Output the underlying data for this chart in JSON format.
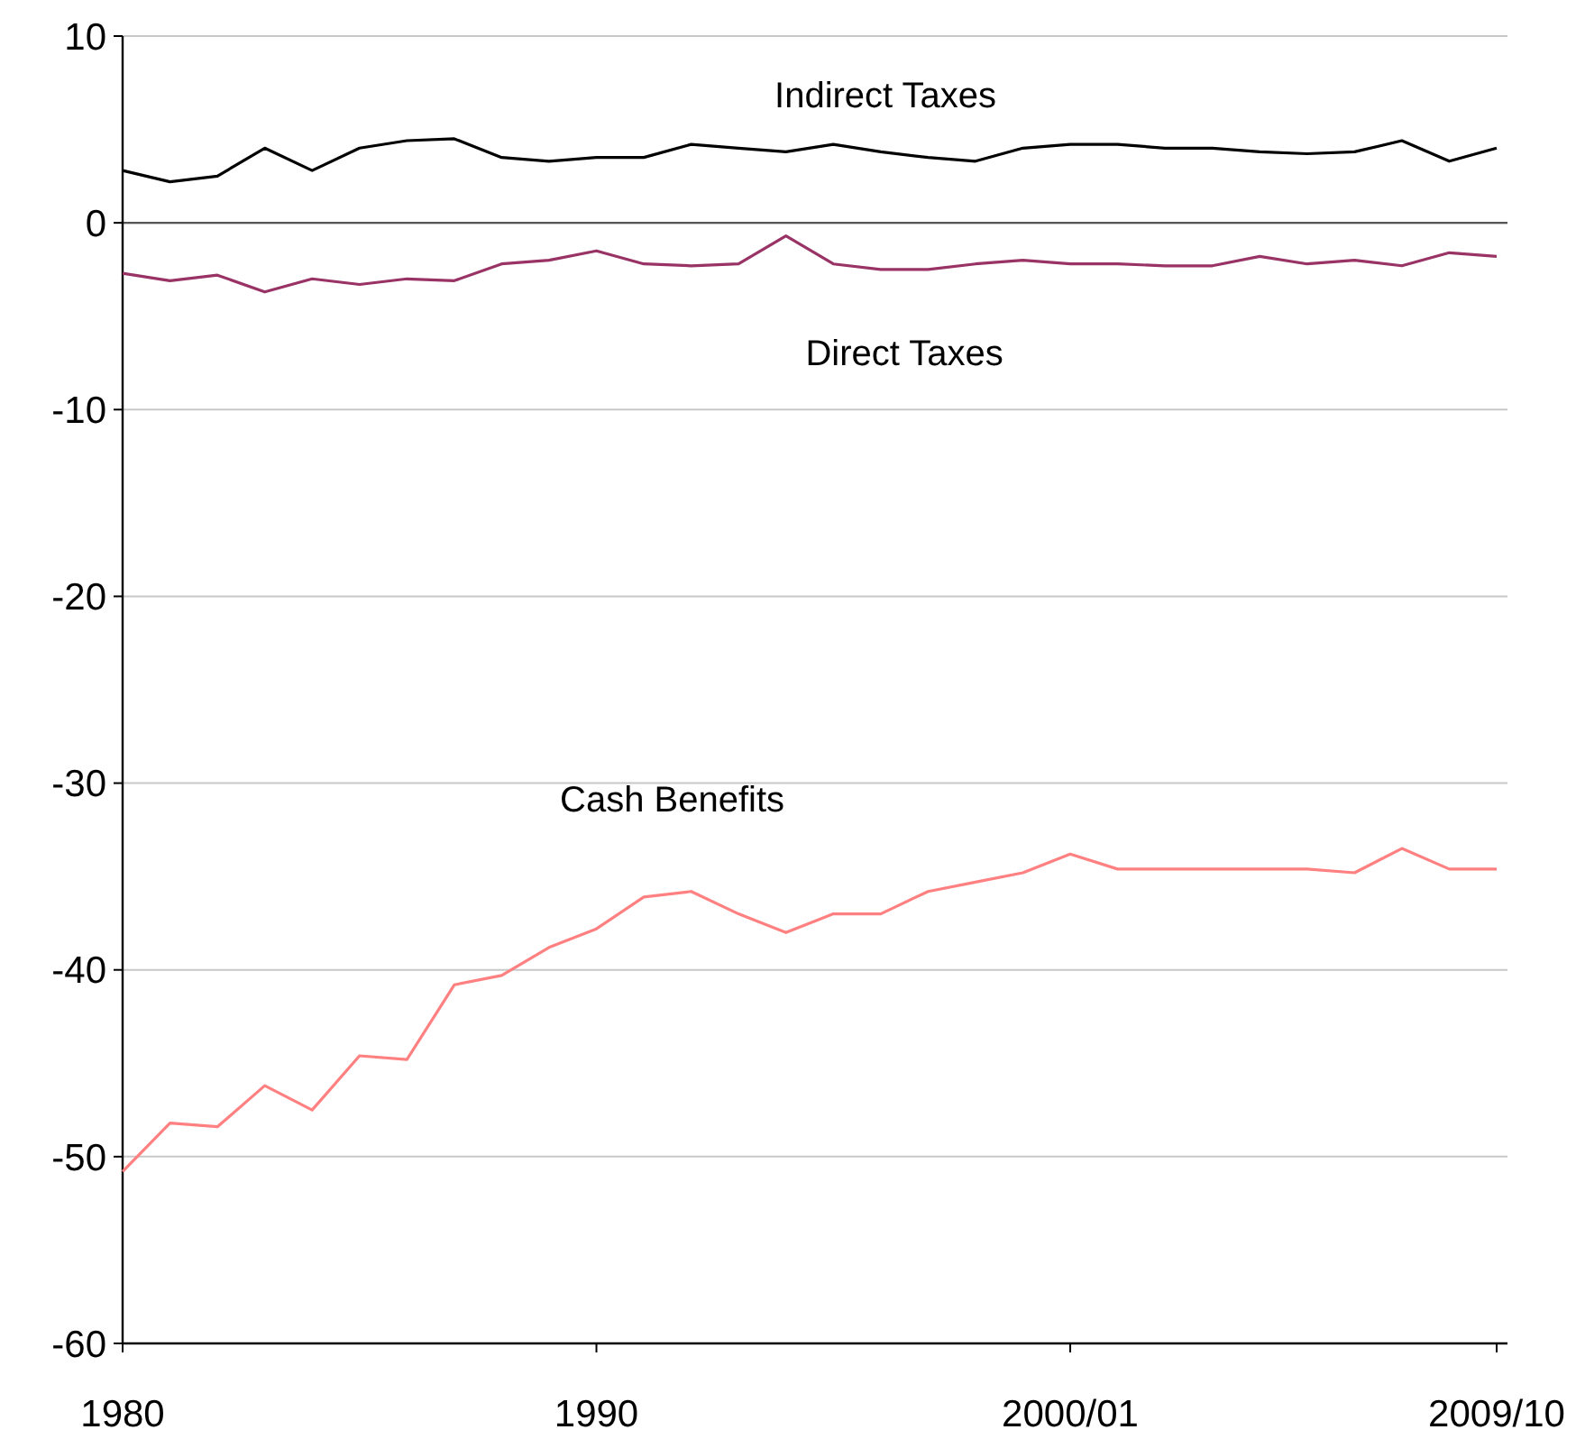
{
  "chart_data": {
    "type": "line",
    "categories": [
      "1980",
      null,
      null,
      null,
      null,
      null,
      null,
      null,
      null,
      null,
      "1990",
      null,
      null,
      null,
      null,
      null,
      null,
      null,
      null,
      null,
      "2000/01",
      null,
      null,
      null,
      null,
      null,
      null,
      null,
      null,
      "2009/10"
    ],
    "series": [
      {
        "name": "Indirect Taxes",
        "color": "#000000",
        "values": [
          2.8,
          2.2,
          2.5,
          4.0,
          2.8,
          4.0,
          4.4,
          4.5,
          3.5,
          3.3,
          3.5,
          3.5,
          4.2,
          4.0,
          3.8,
          4.2,
          3.8,
          3.5,
          3.3,
          4.0,
          4.2,
          4.2,
          4.0,
          4.0,
          3.8,
          3.7,
          3.8,
          4.4,
          3.3,
          4.0
        ]
      },
      {
        "name": "Direct Taxes",
        "color": "#993366",
        "values": [
          -2.7,
          -3.1,
          -2.8,
          -3.7,
          -3.0,
          -3.3,
          -3.0,
          -3.1,
          -2.2,
          -2.0,
          -1.5,
          -2.2,
          -2.3,
          -2.2,
          -0.7,
          -2.2,
          -2.5,
          -2.5,
          -2.2,
          -2.0,
          -2.2,
          -2.2,
          -2.3,
          -2.3,
          -1.8,
          -2.2,
          -2.0,
          -2.3,
          -1.6,
          -1.8
        ]
      },
      {
        "name": "Cash Benefits",
        "color": "#ff8080",
        "values": [
          -50.8,
          -48.2,
          -48.4,
          -46.2,
          -47.5,
          -44.6,
          -44.8,
          -40.8,
          -40.3,
          -38.8,
          -37.8,
          -36.1,
          -35.8,
          -37.0,
          -38.0,
          -37.0,
          -37.0,
          -35.8,
          -35.3,
          -34.8,
          -33.8,
          -34.6,
          -34.6,
          -34.6,
          -34.6,
          -34.6,
          -34.8,
          -33.5,
          -34.6,
          -34.6
        ]
      }
    ],
    "ylim": [
      -60,
      10
    ],
    "yticks": [
      -60,
      -50,
      -40,
      -30,
      -20,
      -10,
      0,
      10
    ],
    "grid": "y",
    "marker": "none",
    "line_style": "solid",
    "ref_lines": [
      {
        "axis": "y",
        "value": 0,
        "color": "#555555"
      }
    ]
  }
}
